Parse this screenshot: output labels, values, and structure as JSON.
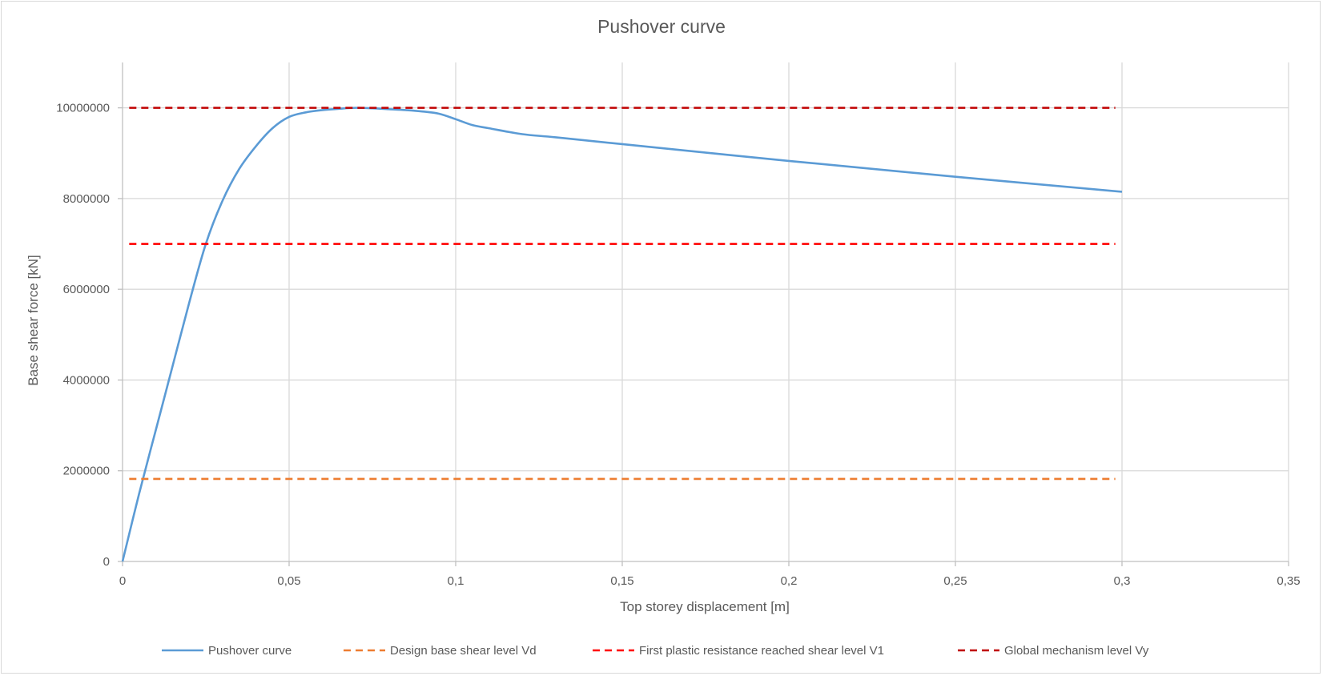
{
  "chart_data": {
    "type": "line",
    "title": "Pushover curve",
    "xlabel": "Top storey displacement [m]",
    "ylabel": "Base shear force [kN]",
    "xlim": [
      0,
      0.35
    ],
    "ylim": [
      0,
      11000000
    ],
    "x_ticks": [
      0,
      0.05,
      0.1,
      0.15,
      0.2,
      0.25,
      0.3,
      0.35
    ],
    "x_tick_labels": [
      "0",
      "0,05",
      "0,1",
      "0,15",
      "0,2",
      "0,25",
      "0,3",
      "0,35"
    ],
    "y_ticks": [
      0,
      2000000,
      4000000,
      6000000,
      8000000,
      10000000
    ],
    "y_tick_labels": [
      "0",
      "2000000",
      "4000000",
      "6000000",
      "8000000",
      "10000000"
    ],
    "grid": true,
    "legend_position": "bottom",
    "series": [
      {
        "name": "Pushover curve",
        "color": "#5b9bd5",
        "style": "solid",
        "x": [
          0,
          0.005,
          0.01,
          0.015,
          0.02,
          0.025,
          0.03,
          0.035,
          0.04,
          0.045,
          0.05,
          0.055,
          0.06,
          0.065,
          0.07,
          0.075,
          0.08,
          0.085,
          0.09,
          0.095,
          0.1,
          0.105,
          0.11,
          0.12,
          0.13,
          0.15,
          0.2,
          0.25,
          0.3
        ],
        "y": [
          0,
          1500000,
          2900000,
          4300000,
          5700000,
          7000000,
          7950000,
          8650000,
          9150000,
          9550000,
          9800000,
          9900000,
          9950000,
          9980000,
          10000000,
          9990000,
          9970000,
          9950000,
          9920000,
          9870000,
          9750000,
          9620000,
          9550000,
          9420000,
          9350000,
          9200000,
          8830000,
          8480000,
          8150000
        ]
      },
      {
        "name": "Design base shear level Vd",
        "color": "#ed7d31",
        "style": "dashed",
        "x": [
          0.002,
          0.298
        ],
        "y": [
          1820000,
          1820000
        ]
      },
      {
        "name": "First plastic resistance reached shear level V1",
        "color": "#ff0000",
        "style": "dashed",
        "x": [
          0.002,
          0.298
        ],
        "y": [
          7000000,
          7000000
        ]
      },
      {
        "name": "Global mechanism level Vy",
        "color": "#c00000",
        "style": "dashed",
        "x": [
          0.002,
          0.298
        ],
        "y": [
          10000000,
          10000000
        ]
      }
    ]
  }
}
